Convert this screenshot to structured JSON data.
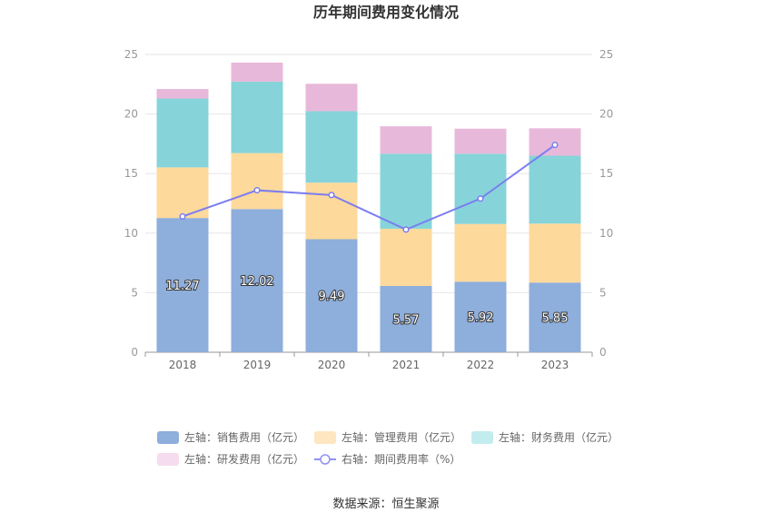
{
  "chart_data": {
    "type": "bar",
    "stacked": true,
    "title": "历年期间费用变化情况",
    "categories": [
      "2018",
      "2019",
      "2020",
      "2021",
      "2022",
      "2023"
    ],
    "left_axis": {
      "min": 0,
      "max": 25,
      "ticks": [
        0,
        5,
        10,
        15,
        20,
        25
      ]
    },
    "right_axis": {
      "min": 0,
      "max": 25,
      "ticks": [
        0,
        5,
        10,
        15,
        20,
        25
      ]
    },
    "series": [
      {
        "name": "左轴：销售费用（亿元）",
        "type": "bar",
        "color": "#8eaedb",
        "values": [
          11.27,
          12.02,
          9.49,
          5.57,
          5.92,
          5.85
        ],
        "show_labels": true
      },
      {
        "name": "左轴：管理费用（亿元）",
        "type": "bar",
        "color": "#fdd99b",
        "values": [
          4.25,
          4.7,
          4.75,
          4.8,
          4.85,
          4.95
        ],
        "show_labels": false
      },
      {
        "name": "左轴：财务费用（亿元）",
        "type": "bar",
        "color": "#86d4d9",
        "values": [
          5.78,
          6.0,
          6.0,
          6.3,
          5.9,
          5.7
        ],
        "show_labels": false
      },
      {
        "name": "左轴：研发费用（亿元）",
        "type": "bar",
        "color": "#e8b8da",
        "values": [
          0.8,
          1.6,
          2.3,
          2.3,
          2.1,
          2.3
        ],
        "show_labels": false
      },
      {
        "name": "右轴：期间费用率（%）",
        "type": "line",
        "color": "#7b7ef0",
        "values": [
          11.4,
          13.6,
          13.2,
          10.3,
          12.9,
          17.4
        ]
      }
    ],
    "legend_position": "bottom"
  },
  "legend": [
    {
      "label": "左轴：销售费用（亿元）",
      "color": "#8eaedb",
      "kind": "box"
    },
    {
      "label": "左轴：管理费用（亿元）",
      "color": "#fde6c0",
      "kind": "box"
    },
    {
      "label": "左轴：财务费用（亿元）",
      "color": "#c2ecee",
      "kind": "box"
    },
    {
      "label": "左轴：研发费用（亿元）",
      "color": "#f5dcee",
      "kind": "box"
    },
    {
      "label": "右轴：期间费用率（%）",
      "color": "#8f92f2",
      "kind": "line"
    }
  ],
  "source": "数据来源：恒生聚源"
}
